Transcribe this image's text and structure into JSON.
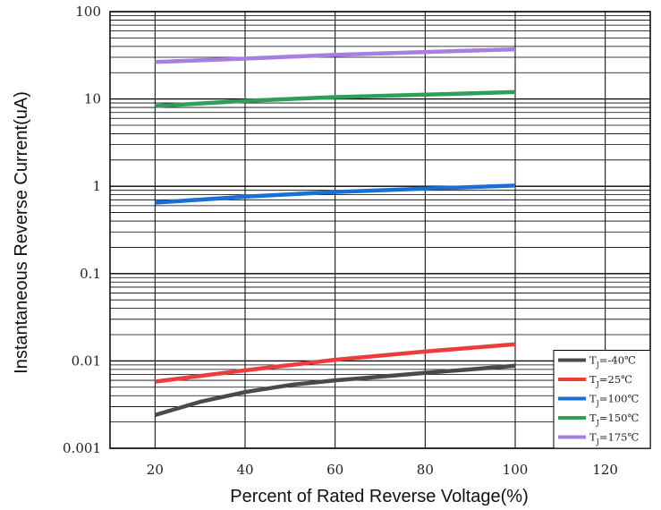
{
  "chart_data": {
    "type": "line",
    "title": "",
    "xlabel": "Percent of Rated Reverse Voltage(%)",
    "ylabel": "Instantaneous Reverse Current(uA)",
    "xlim": [
      10,
      130
    ],
    "ylim": [
      0.001,
      100
    ],
    "yscale": "log",
    "grid": true,
    "legend_position": "bottom-right",
    "x_ticks": [
      {
        "value": 20,
        "label": "20"
      },
      {
        "value": 40,
        "label": "40"
      },
      {
        "value": 60,
        "label": "60"
      },
      {
        "value": 80,
        "label": "80"
      },
      {
        "value": 100,
        "label": "100"
      },
      {
        "value": 120,
        "label": "120"
      }
    ],
    "y_ticks": [
      {
        "value": 0.001,
        "label": "0.001"
      },
      {
        "value": 0.01,
        "label": "0.01"
      },
      {
        "value": 0.1,
        "label": "0.1"
      },
      {
        "value": 1,
        "label": "1"
      },
      {
        "value": 10,
        "label": "10"
      },
      {
        "value": 100,
        "label": "100"
      }
    ],
    "series": [
      {
        "name": "-40℃",
        "color": "#4a4a4a",
        "x": [
          20,
          30,
          40,
          50,
          60,
          70,
          80,
          90,
          100
        ],
        "y": [
          0.0024,
          0.0034,
          0.0044,
          0.0053,
          0.006,
          0.0066,
          0.0073,
          0.008,
          0.0088
        ]
      },
      {
        "name": "25℃",
        "color": "#ee3b3b",
        "x": [
          20,
          40,
          60,
          80,
          100
        ],
        "y": [
          0.0058,
          0.0078,
          0.0103,
          0.0128,
          0.0155
        ]
      },
      {
        "name": "100℃",
        "color": "#1a6fd6",
        "x": [
          20,
          40,
          60,
          80,
          100
        ],
        "y": [
          0.65,
          0.76,
          0.86,
          0.94,
          1.02
        ]
      },
      {
        "name": "150℃",
        "color": "#2e9e5b",
        "x": [
          20,
          40,
          60,
          80,
          100
        ],
        "y": [
          8.3,
          9.5,
          10.5,
          11.2,
          12
        ]
      },
      {
        "name": "175℃",
        "color": "#a67fe0",
        "x": [
          20,
          40,
          60,
          80,
          100
        ],
        "y": [
          26.5,
          29,
          32,
          34.5,
          37
        ]
      }
    ],
    "legend_prefix": "T",
    "legend_subscript": "J",
    "legend_equals": "="
  }
}
